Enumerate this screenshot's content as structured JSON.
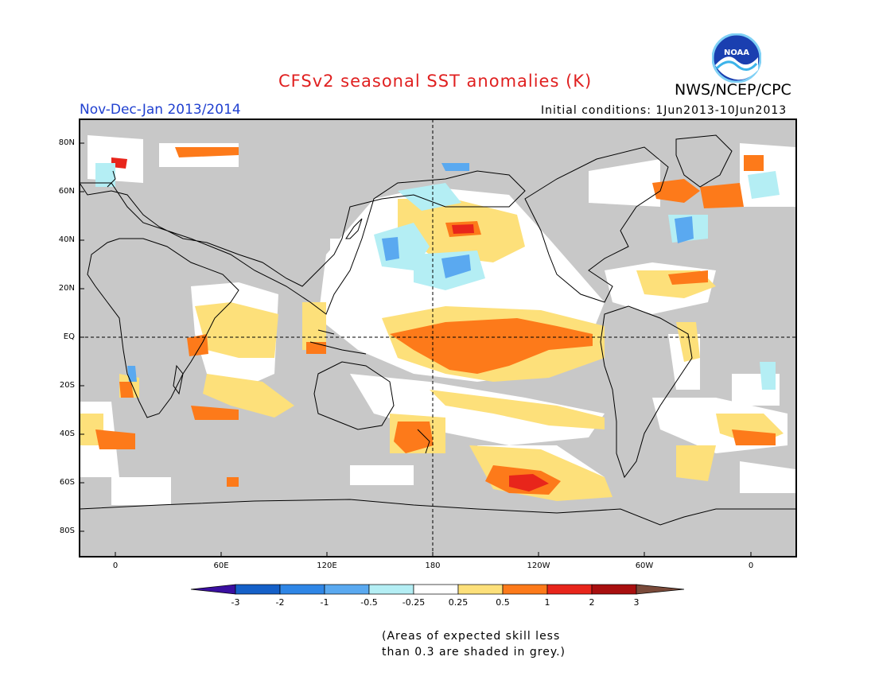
{
  "header": {
    "title": "CFSv2 seasonal SST anomalies (K)",
    "agency": "NWS/NCEP/CPC",
    "logo_text": "NOAA",
    "season": "Nov-Dec-Jan 2013/2014",
    "initial_conditions": "Initial conditions: 1Jun2013-10Jun2013"
  },
  "map": {
    "lat_labels": [
      "80N",
      "60N",
      "40N",
      "20N",
      "EQ",
      "20S",
      "40S",
      "60S",
      "80S"
    ],
    "lon_labels": [
      "0",
      "60E",
      "120E",
      "180",
      "120W",
      "60W",
      "0"
    ],
    "colors": {
      "land": "#c8c8c8",
      "ocean_neutral": "#ffffff",
      "outline": "#000000"
    }
  },
  "colorbar": {
    "labels": [
      "-3",
      "-2",
      "-1",
      "-0.5",
      "-0.25",
      "0.25",
      "0.5",
      "1",
      "2",
      "3"
    ],
    "colors": [
      "#3a0fa0",
      "#1560c8",
      "#2f86e6",
      "#5aa9f0",
      "#b4eef4",
      "#ffffff",
      "#fde07a",
      "#fd7a1a",
      "#e8251b",
      "#a80f0f",
      "#7a4a3a"
    ]
  },
  "note": {
    "line1": "(Areas of expected skill less",
    "line2": "than 0.3 are shaded in grey.)"
  }
}
